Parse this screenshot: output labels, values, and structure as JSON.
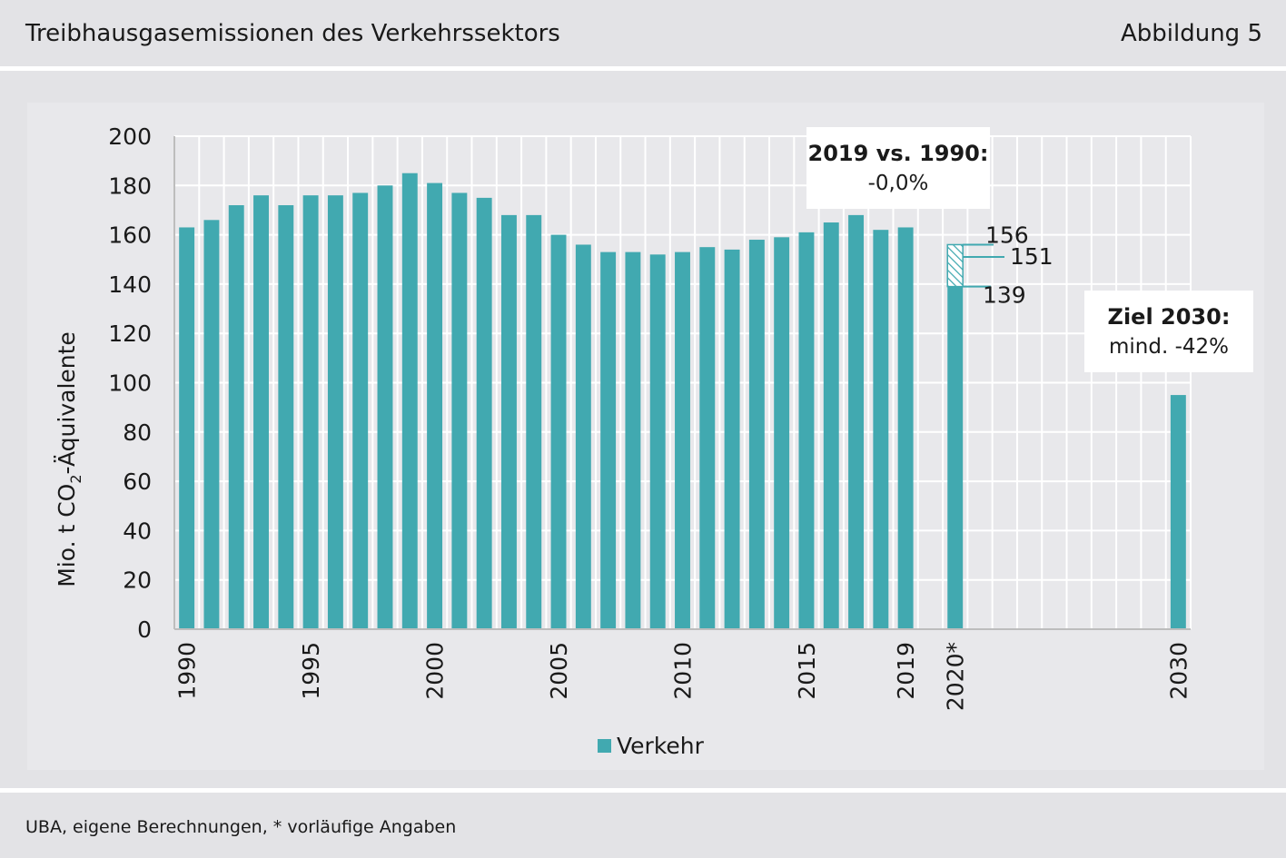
{
  "header": {
    "title": "Treibhausgasemissionen des Verkehrssektors",
    "figure_label": "Abbildung 5"
  },
  "footer": {
    "source": "UBA, eigene Berechnungen, * vorläufige Angaben"
  },
  "colors": {
    "bar": "#41a9b0",
    "background": "#e3e3e6",
    "grid": "#ffffff"
  },
  "chart_data": {
    "type": "bar",
    "ylabel_parts": [
      "Mio. t CO",
      "2",
      "-Äquivalente"
    ],
    "ylim": [
      0,
      200
    ],
    "yticks": [
      0,
      20,
      40,
      60,
      80,
      100,
      120,
      140,
      160,
      180,
      200
    ],
    "grid": true,
    "legend": {
      "position": "bottom-center",
      "label": "Verkehr"
    },
    "xrange": [
      1990,
      2030
    ],
    "xtick_labels": [
      {
        "x": 1990,
        "label": "1990"
      },
      {
        "x": 1995,
        "label": "1995"
      },
      {
        "x": 2000,
        "label": "2000"
      },
      {
        "x": 2005,
        "label": "2005"
      },
      {
        "x": 2010,
        "label": "2010"
      },
      {
        "x": 2015,
        "label": "2015"
      },
      {
        "x": 2019,
        "label": "2019"
      },
      {
        "x": 2021,
        "label": "2020*"
      },
      {
        "x": 2030,
        "label": "2030"
      }
    ],
    "series": [
      {
        "name": "Verkehr",
        "points": [
          {
            "x": 1990,
            "y": 163
          },
          {
            "x": 1991,
            "y": 166
          },
          {
            "x": 1992,
            "y": 172
          },
          {
            "x": 1993,
            "y": 176
          },
          {
            "x": 1994,
            "y": 172
          },
          {
            "x": 1995,
            "y": 176
          },
          {
            "x": 1996,
            "y": 176
          },
          {
            "x": 1997,
            "y": 177
          },
          {
            "x": 1998,
            "y": 180
          },
          {
            "x": 1999,
            "y": 185
          },
          {
            "x": 2000,
            "y": 181
          },
          {
            "x": 2001,
            "y": 177
          },
          {
            "x": 2002,
            "y": 175
          },
          {
            "x": 2003,
            "y": 168
          },
          {
            "x": 2004,
            "y": 168
          },
          {
            "x": 2005,
            "y": 160
          },
          {
            "x": 2006,
            "y": 156
          },
          {
            "x": 2007,
            "y": 153
          },
          {
            "x": 2008,
            "y": 153
          },
          {
            "x": 2009,
            "y": 152
          },
          {
            "x": 2010,
            "y": 153
          },
          {
            "x": 2011,
            "y": 155
          },
          {
            "x": 2012,
            "y": 154
          },
          {
            "x": 2013,
            "y": 158
          },
          {
            "x": 2014,
            "y": 159
          },
          {
            "x": 2015,
            "y": 161
          },
          {
            "x": 2016,
            "y": 165
          },
          {
            "x": 2017,
            "y": 168
          },
          {
            "x": 2018,
            "y": 162
          },
          {
            "x": 2019,
            "y": 163
          },
          {
            "x": 2021,
            "y": 139
          },
          {
            "x": 2030,
            "y": 95
          }
        ]
      }
    ],
    "range_2020": {
      "x": 2021,
      "low": 139,
      "mid": 151,
      "high": 156,
      "labels": [
        "139",
        "151",
        "156"
      ]
    },
    "annotations": [
      {
        "id": "vs1990",
        "title": "2019 vs. 1990:",
        "text": "-0,0%"
      },
      {
        "id": "ziel",
        "title": "Ziel 2030:",
        "text": "mind. -42%"
      }
    ]
  }
}
